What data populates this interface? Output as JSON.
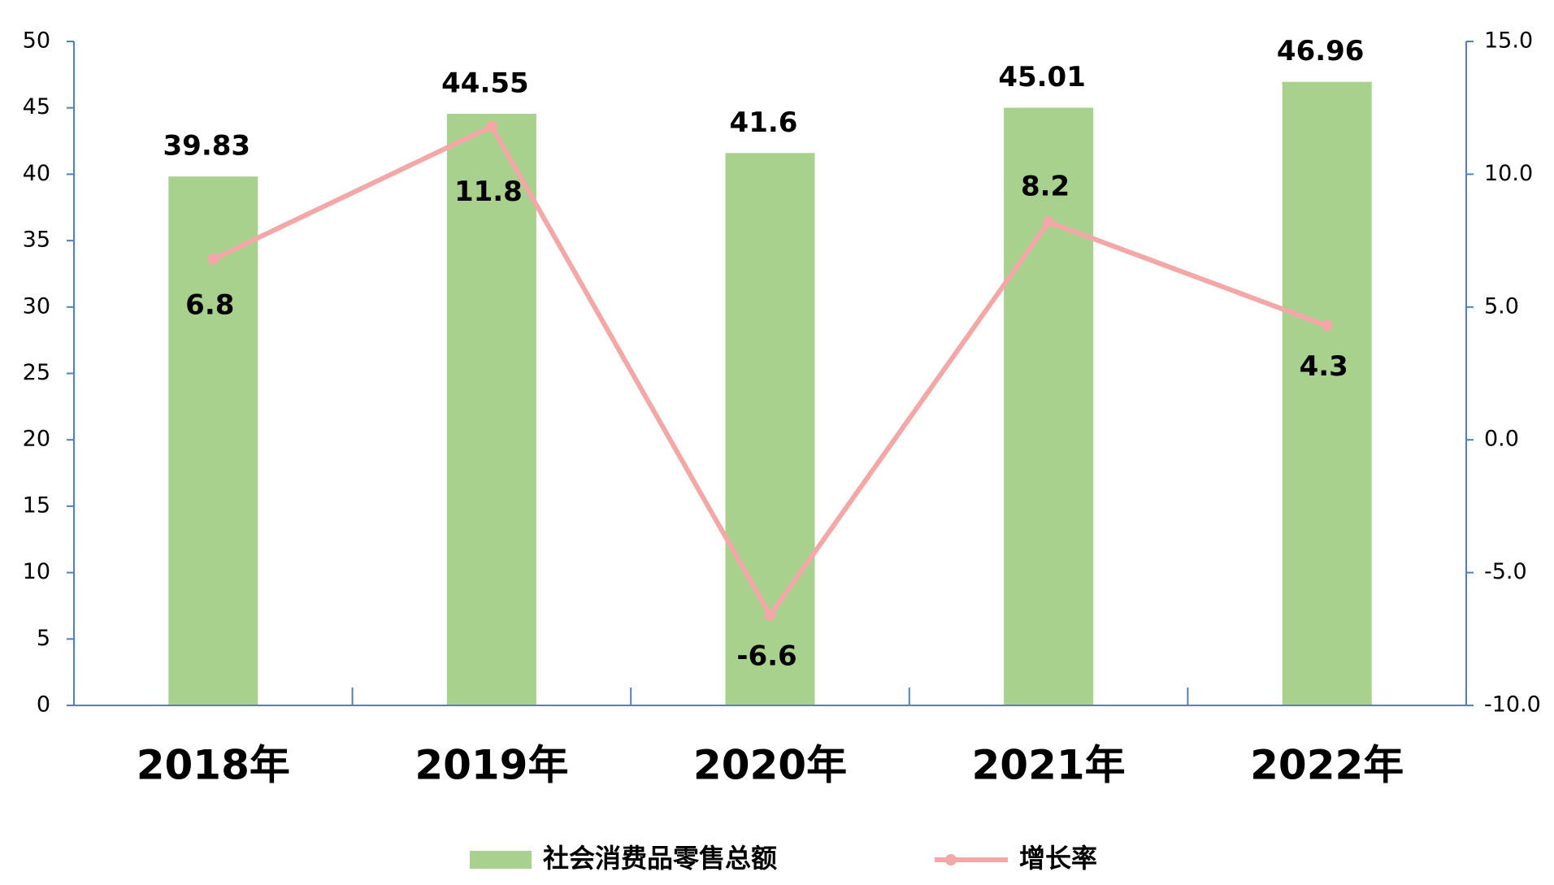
{
  "chart_data": {
    "type": "bar",
    "categories": [
      "2018年",
      "2019年",
      "2020年",
      "2021年",
      "2022年"
    ],
    "series": [
      {
        "name": "社会消费品零售总额",
        "type": "bar",
        "color": "#a9d18e",
        "values": [
          39.83,
          44.55,
          41.6,
          45.01,
          46.96
        ]
      },
      {
        "name": "增长率",
        "type": "line",
        "axis": "y2",
        "color": "#f4a7a7",
        "values": [
          6.8,
          11.8,
          -6.6,
          8.2,
          4.3
        ]
      }
    ],
    "ylim": [
      0,
      50
    ],
    "yticks": [
      0,
      5,
      10,
      15,
      20,
      25,
      30,
      35,
      40,
      45,
      50
    ],
    "y2lim": [
      -10,
      15
    ],
    "y2ticks": [
      {
        "value": -10,
        "label": "-10.0"
      },
      {
        "value": -5,
        "label": "-5.0"
      },
      {
        "value": 0,
        "label": "0.0"
      },
      {
        "value": 5,
        "label": "5.0"
      },
      {
        "value": 10,
        "label": "10.0"
      },
      {
        "value": 15,
        "label": "15.0"
      }
    ],
    "legend": "bottom"
  }
}
